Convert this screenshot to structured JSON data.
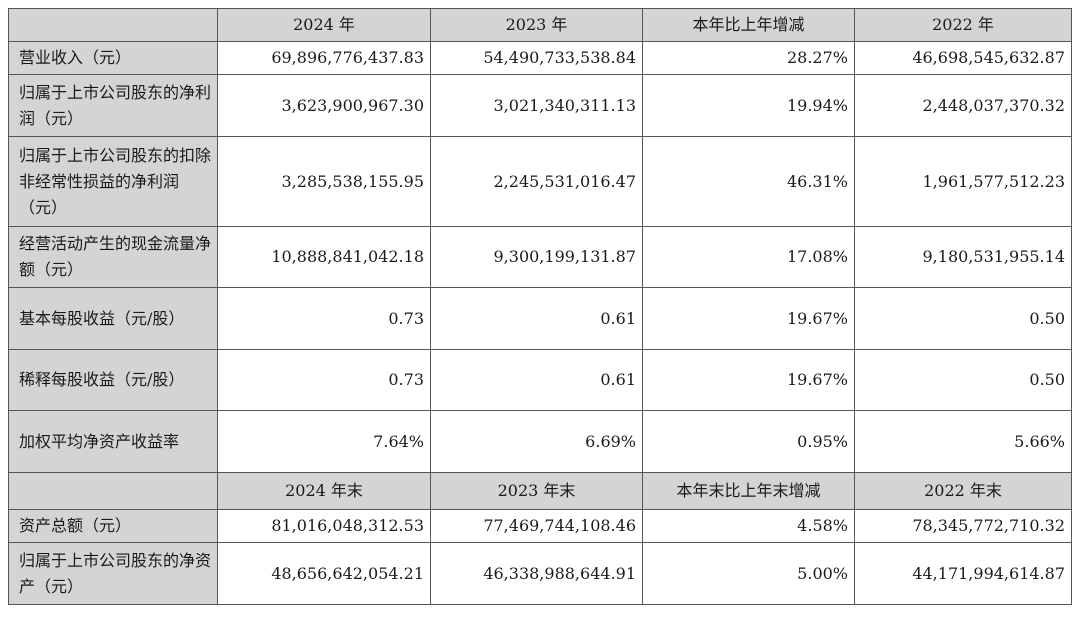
{
  "table": {
    "header1": [
      "",
      "2024 年",
      "2023 年",
      "本年比上年增减",
      "2022 年"
    ],
    "rows1": [
      {
        "label": "营业收入（元）",
        "values": [
          "69,896,776,437.83",
          "54,490,733,538.84",
          "28.27%",
          "46,698,545,632.87"
        ]
      },
      {
        "label": "归属于上市公司股东的净利润（元）",
        "values": [
          "3,623,900,967.30",
          "3,021,340,311.13",
          "19.94%",
          "2,448,037,370.32"
        ]
      },
      {
        "label": "归属于上市公司股东的扣除非经常性损益的净利润（元）",
        "values": [
          "3,285,538,155.95",
          "2,245,531,016.47",
          "46.31%",
          "1,961,577,512.23"
        ]
      },
      {
        "label": "经营活动产生的现金流量净额（元）",
        "values": [
          "10,888,841,042.18",
          "9,300,199,131.87",
          "17.08%",
          "9,180,531,955.14"
        ]
      },
      {
        "label": "基本每股收益（元/股）",
        "values": [
          "0.73",
          "0.61",
          "19.67%",
          "0.50"
        ]
      },
      {
        "label": "稀释每股收益（元/股）",
        "values": [
          "0.73",
          "0.61",
          "19.67%",
          "0.50"
        ]
      },
      {
        "label": "加权平均净资产收益率",
        "values": [
          "7.64%",
          "6.69%",
          "0.95%",
          "5.66%"
        ]
      }
    ],
    "header2": [
      "",
      "2024 年末",
      "2023 年末",
      "本年末比上年末增减",
      "2022 年末"
    ],
    "rows2": [
      {
        "label": "资产总额（元）",
        "values": [
          "81,016,048,312.53",
          "77,469,744,108.46",
          "4.58%",
          "78,345,772,710.32"
        ]
      },
      {
        "label": "归属于上市公司股东的净资产（元）",
        "values": [
          "48,656,642,054.21",
          "46,338,988,644.91",
          "5.00%",
          "44,171,994,614.87"
        ]
      }
    ]
  }
}
